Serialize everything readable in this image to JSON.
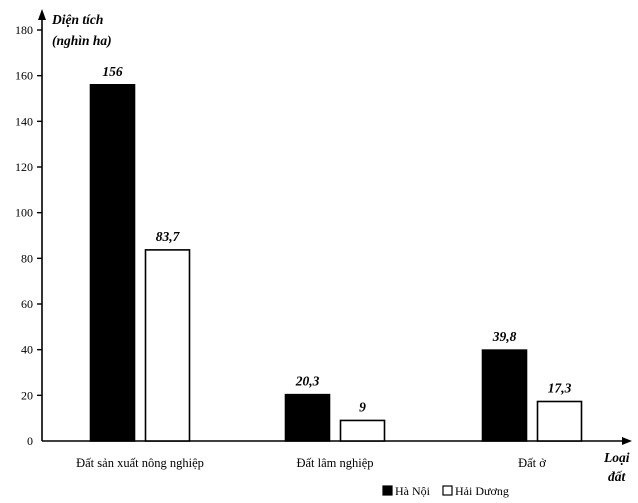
{
  "chart_data": {
    "type": "bar",
    "categories": [
      "Đất sản xuất nông nghiệp",
      "Đất lâm nghiệp",
      "Đất ở"
    ],
    "series": [
      {
        "name": "Hà Nội",
        "values": [
          156,
          20.3,
          39.8
        ],
        "labels": [
          "156",
          "20,3",
          "39,8"
        ],
        "color": "#000000"
      },
      {
        "name": "Hải Dương",
        "values": [
          83.7,
          9,
          17.3
        ],
        "labels": [
          "83,7",
          "9",
          "17,3"
        ],
        "color": "#ffffff"
      }
    ],
    "ylabel_line1": "Diện tích",
    "ylabel_line2": "(nghìn ha)",
    "xlabel_line1": "Loại",
    "xlabel_line2": "đất",
    "yticks": [
      0,
      20,
      40,
      60,
      80,
      100,
      120,
      140,
      160,
      180
    ],
    "ylim": [
      0,
      180
    ],
    "grid": false,
    "legend_position": "bottom-right"
  }
}
